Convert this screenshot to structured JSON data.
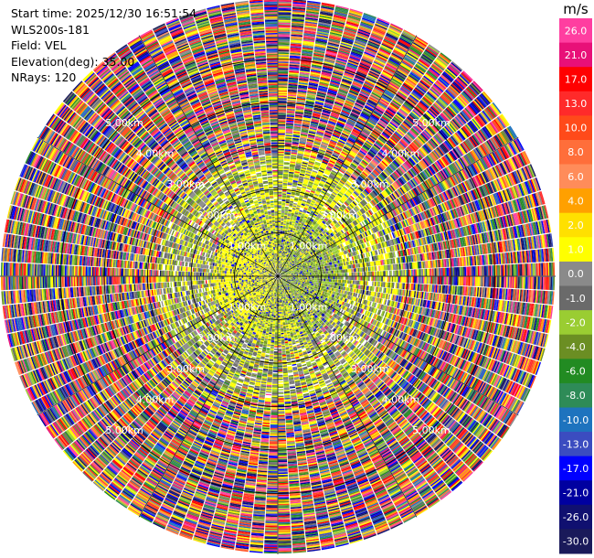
{
  "header": {
    "start_time": "Start time: 2025/12/30 16:51:54",
    "instrument": "WLS200s-181",
    "field": "Field: VEL",
    "elevation": "Elevation(deg): 35.00",
    "nrays": "NRays: 120"
  },
  "chart_data": {
    "type": "heatmap",
    "projection": "polar (PPI scan)",
    "field": "VEL",
    "unit": "m/s",
    "elevation_deg": 35.0,
    "n_rays": 120,
    "range_ring_labels": [
      "1.00km",
      "2.00km",
      "3.00km",
      "4.00km",
      "5.00km"
    ],
    "range_rings_km": [
      1,
      2,
      3,
      4,
      5
    ],
    "max_range_km": 6.4,
    "colorbar": {
      "label": "m/s",
      "ticks": [
        "26.0",
        "21.0",
        "17.0",
        "13.0",
        "10.0",
        "8.0",
        "6.0",
        "4.0",
        "2.0",
        "1.0",
        "0.0",
        "-1.0",
        "-2.0",
        "-4.0",
        "-6.0",
        "-8.0",
        "-10.0",
        "-13.0",
        "-17.0",
        "-21.0",
        "-26.0",
        "-30.0"
      ],
      "colors": [
        "#ff3ea0",
        "#e81078",
        "#ff0000",
        "#ff2a2a",
        "#ff4a1a",
        "#ff6e3a",
        "#ff8c5a",
        "#ffa000",
        "#ffe000",
        "#ffff00",
        "#8a8a8a",
        "#6a6a6a",
        "#9acd32",
        "#6b8e23",
        "#228b22",
        "#2e8b57",
        "#1e73be",
        "#3b4cc0",
        "#0000ff",
        "#0000a0",
        "#101070",
        "#1a1a5a"
      ]
    },
    "pattern": {
      "inner_zone": "near-zero velocities (yellow, grey, olive-green)",
      "transition_zone": "mixed yellow / grey / green",
      "outer_zone": "noise with all colors"
    }
  },
  "colors": {
    "background": "#ffffff",
    "grid": "#000000",
    "ring_label_text": "#ffffff"
  }
}
